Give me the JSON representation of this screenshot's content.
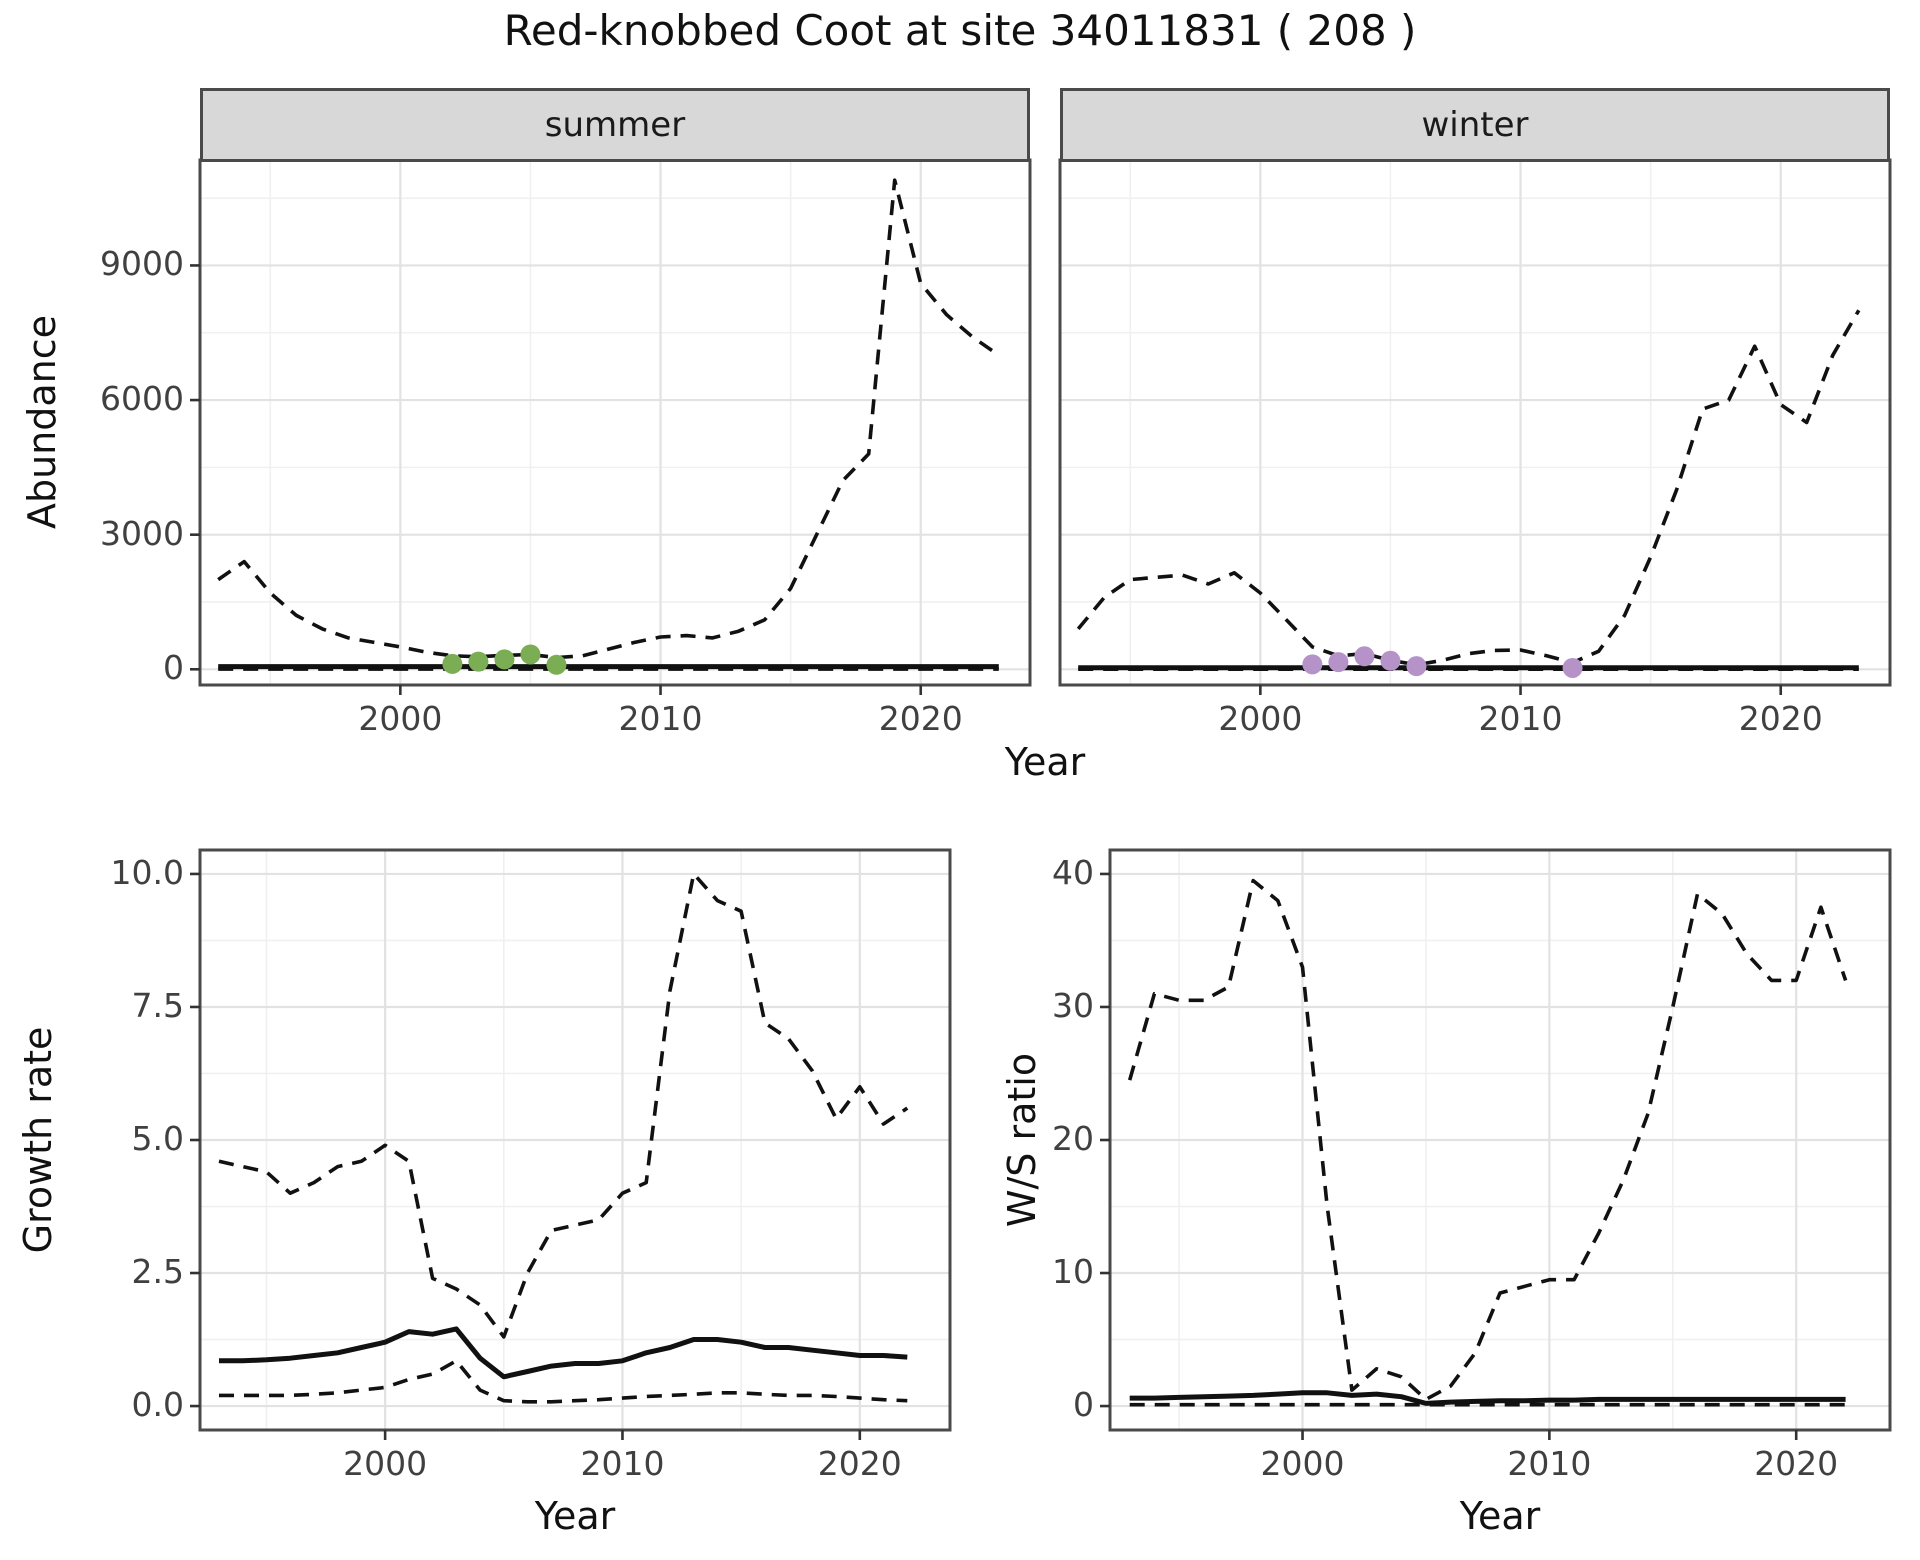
{
  "title": "Red-knobbed Coot at site 34011831 ( 208 )",
  "axes": {
    "abundance_label": "Abundance",
    "year_label_top": "Year",
    "growth_label": "Growth rate",
    "year_label_growth": "Year",
    "ws_label": "W/S ratio",
    "year_label_ws": "Year"
  },
  "colors": {
    "summer_points": "#7bae54",
    "winter_points": "#b593c8",
    "line": "#111111",
    "strip_bg": "#d8d8d8",
    "panel_border": "#4a4a4a"
  },
  "chart_data": [
    {
      "id": "abundance-summer",
      "type": "line",
      "facet": "summer",
      "xlabel": "Year",
      "ylabel": "Abundance",
      "xlim": [
        1992.3,
        2024.2
      ],
      "ylim": [
        -350,
        11350
      ],
      "xticks": [
        2000,
        2010,
        2020
      ],
      "xticklabels": [
        "2000",
        "2010",
        "2020"
      ],
      "yticks": [
        0,
        3000,
        6000,
        9000
      ],
      "yticklabels": [
        "0",
        "3000",
        "6000",
        "9000"
      ],
      "series": [
        {
          "name": "upper-ci-dashed",
          "style": "dashed",
          "x": [
            1993,
            1994,
            1995,
            1996,
            1997,
            1998,
            1999,
            2000,
            2001,
            2002,
            2003,
            2004,
            2005,
            2006,
            2007,
            2008,
            2009,
            2010,
            2011,
            2012,
            2013,
            2014,
            2015,
            2016,
            2017,
            2018,
            2019,
            2020,
            2021,
            2022,
            2023
          ],
          "y": [
            2000,
            2400,
            1700,
            1200,
            900,
            700,
            600,
            500,
            380,
            300,
            280,
            310,
            330,
            260,
            300,
            450,
            600,
            720,
            750,
            700,
            850,
            1100,
            1800,
            3000,
            4200,
            4800,
            10900,
            8600,
            7900,
            7400,
            7000
          ]
        },
        {
          "name": "estimate-solid",
          "style": "solid",
          "x": [
            1993,
            1994,
            1995,
            1996,
            1997,
            1998,
            1999,
            2000,
            2001,
            2002,
            2003,
            2004,
            2005,
            2006,
            2007,
            2008,
            2009,
            2010,
            2011,
            2012,
            2013,
            2014,
            2015,
            2016,
            2017,
            2018,
            2019,
            2020,
            2021,
            2022,
            2023
          ],
          "y": [
            60,
            60,
            60,
            60,
            60,
            60,
            60,
            60,
            60,
            60,
            60,
            60,
            60,
            60,
            60,
            60,
            60,
            60,
            60,
            60,
            60,
            60,
            60,
            60,
            60,
            60,
            60,
            60,
            60,
            60,
            60
          ]
        },
        {
          "name": "lower-ci-dashed",
          "style": "dashed",
          "x": [
            1993,
            1994,
            1995,
            1996,
            1997,
            1998,
            1999,
            2000,
            2001,
            2002,
            2003,
            2004,
            2005,
            2006,
            2007,
            2008,
            2009,
            2010,
            2011,
            2012,
            2013,
            2014,
            2015,
            2016,
            2017,
            2018,
            2019,
            2020,
            2021,
            2022,
            2023
          ],
          "y": [
            5,
            5,
            5,
            5,
            5,
            5,
            5,
            5,
            5,
            5,
            5,
            5,
            5,
            5,
            5,
            5,
            5,
            5,
            5,
            5,
            5,
            5,
            5,
            5,
            5,
            5,
            5,
            5,
            5,
            5,
            5
          ]
        }
      ],
      "points": {
        "name": "summer-observed-counts",
        "color": "#7bae54",
        "x": [
          2002,
          2003,
          2004,
          2005,
          2006
        ],
        "y": [
          120,
          170,
          220,
          330,
          100
        ]
      }
    },
    {
      "id": "abundance-winter",
      "type": "line",
      "facet": "winter",
      "xlabel": "Year",
      "ylabel": "",
      "xlim": [
        1992.3,
        2024.2
      ],
      "ylim": [
        -350,
        11350
      ],
      "xticks": [
        2000,
        2010,
        2020
      ],
      "xticklabels": [
        "2000",
        "2010",
        "2020"
      ],
      "yticks": [
        0,
        3000,
        6000,
        9000
      ],
      "yticklabels": [],
      "series": [
        {
          "name": "upper-ci-dashed",
          "style": "dashed",
          "x": [
            1993,
            1994,
            1995,
            1996,
            1997,
            1998,
            1999,
            2000,
            2001,
            2002,
            2003,
            2004,
            2005,
            2006,
            2007,
            2008,
            2009,
            2010,
            2011,
            2012,
            2013,
            2014,
            2015,
            2016,
            2017,
            2018,
            2019,
            2020,
            2021,
            2022,
            2023
          ],
          "y": [
            900,
            1600,
            2000,
            2050,
            2100,
            1900,
            2150,
            1700,
            1100,
            500,
            300,
            350,
            200,
            100,
            200,
            350,
            420,
            430,
            300,
            150,
            400,
            1200,
            2500,
            4000,
            5800,
            6000,
            7200,
            5900,
            5500,
            7000,
            8000
          ]
        },
        {
          "name": "estimate-solid",
          "style": "solid",
          "x": [
            1993,
            1994,
            1995,
            1996,
            1997,
            1998,
            1999,
            2000,
            2001,
            2002,
            2003,
            2004,
            2005,
            2006,
            2007,
            2008,
            2009,
            2010,
            2011,
            2012,
            2013,
            2014,
            2015,
            2016,
            2017,
            2018,
            2019,
            2020,
            2021,
            2022,
            2023
          ],
          "y": [
            35,
            35,
            35,
            35,
            35,
            35,
            35,
            35,
            35,
            35,
            35,
            35,
            35,
            35,
            35,
            35,
            35,
            35,
            35,
            35,
            35,
            35,
            35,
            35,
            35,
            35,
            35,
            35,
            35,
            35,
            35
          ]
        },
        {
          "name": "lower-ci-dashed",
          "style": "dashed",
          "x": [
            1993,
            1994,
            1995,
            1996,
            1997,
            1998,
            1999,
            2000,
            2001,
            2002,
            2003,
            2004,
            2005,
            2006,
            2007,
            2008,
            2009,
            2010,
            2011,
            2012,
            2013,
            2014,
            2015,
            2016,
            2017,
            2018,
            2019,
            2020,
            2021,
            2022,
            2023
          ],
          "y": [
            3,
            3,
            3,
            3,
            3,
            3,
            3,
            3,
            3,
            3,
            3,
            3,
            3,
            3,
            3,
            3,
            3,
            3,
            3,
            3,
            3,
            3,
            3,
            3,
            3,
            3,
            3,
            3,
            3,
            3,
            3
          ]
        }
      ],
      "points": {
        "name": "winter-observed-counts",
        "color": "#b593c8",
        "x": [
          2002,
          2003,
          2004,
          2005,
          2006,
          2012
        ],
        "y": [
          110,
          160,
          290,
          190,
          70,
          30
        ]
      }
    },
    {
      "id": "growth-rate",
      "type": "line",
      "facet": "",
      "xlabel": "Year",
      "ylabel": "Growth rate",
      "xlim": [
        1992.2,
        2023.8
      ],
      "ylim": [
        -0.45,
        10.45
      ],
      "xticks": [
        2000,
        2010,
        2020
      ],
      "xticklabels": [
        "2000",
        "2010",
        "2020"
      ],
      "yticks": [
        0,
        2.5,
        5,
        7.5,
        10
      ],
      "yticklabels": [
        "0.0",
        "2.5",
        "5.0",
        "7.5",
        "10.0"
      ],
      "series": [
        {
          "name": "upper-ci-dashed",
          "style": "dashed",
          "x": [
            1993,
            1994,
            1995,
            1996,
            1997,
            1998,
            1999,
            2000,
            2001,
            2002,
            2003,
            2004,
            2005,
            2006,
            2007,
            2008,
            2009,
            2010,
            2011,
            2012,
            2013,
            2014,
            2015,
            2016,
            2017,
            2018,
            2019,
            2020,
            2021,
            2022
          ],
          "y": [
            4.6,
            4.5,
            4.4,
            4.0,
            4.2,
            4.5,
            4.6,
            4.9,
            4.6,
            2.4,
            2.2,
            1.9,
            1.3,
            2.5,
            3.3,
            3.4,
            3.5,
            4.0,
            4.2,
            7.8,
            10.0,
            9.5,
            9.3,
            7.2,
            6.9,
            6.3,
            5.4,
            6.0,
            5.3,
            5.6
          ]
        },
        {
          "name": "estimate-solid",
          "style": "solid",
          "x": [
            1993,
            1994,
            1995,
            1996,
            1997,
            1998,
            1999,
            2000,
            2001,
            2002,
            2003,
            2004,
            2005,
            2006,
            2007,
            2008,
            2009,
            2010,
            2011,
            2012,
            2013,
            2014,
            2015,
            2016,
            2017,
            2018,
            2019,
            2020,
            2021,
            2022
          ],
          "y": [
            0.85,
            0.85,
            0.87,
            0.9,
            0.95,
            1.0,
            1.1,
            1.2,
            1.4,
            1.35,
            1.45,
            0.9,
            0.55,
            0.65,
            0.75,
            0.8,
            0.8,
            0.85,
            1.0,
            1.1,
            1.25,
            1.25,
            1.2,
            1.1,
            1.1,
            1.05,
            1.0,
            0.95,
            0.95,
            0.92
          ]
        },
        {
          "name": "lower-ci-dashed",
          "style": "dashed",
          "x": [
            1993,
            1994,
            1995,
            1996,
            1997,
            1998,
            1999,
            2000,
            2001,
            2002,
            2003,
            2004,
            2005,
            2006,
            2007,
            2008,
            2009,
            2010,
            2011,
            2012,
            2013,
            2014,
            2015,
            2016,
            2017,
            2018,
            2019,
            2020,
            2021,
            2022
          ],
          "y": [
            0.2,
            0.2,
            0.2,
            0.2,
            0.22,
            0.25,
            0.3,
            0.35,
            0.5,
            0.6,
            0.85,
            0.3,
            0.1,
            0.08,
            0.08,
            0.1,
            0.12,
            0.15,
            0.18,
            0.2,
            0.22,
            0.25,
            0.25,
            0.22,
            0.2,
            0.2,
            0.18,
            0.15,
            0.12,
            0.1
          ]
        }
      ]
    },
    {
      "id": "ws-ratio",
      "type": "line",
      "facet": "",
      "xlabel": "Year",
      "ylabel": "W/S ratio",
      "xlim": [
        1992.2,
        2023.8
      ],
      "ylim": [
        -1.8,
        41.8
      ],
      "xticks": [
        2000,
        2010,
        2020
      ],
      "xticklabels": [
        "2000",
        "2010",
        "2020"
      ],
      "yticks": [
        0,
        10,
        20,
        30,
        40
      ],
      "yticklabels": [
        "0",
        "10",
        "20",
        "30",
        "40"
      ],
      "series": [
        {
          "name": "upper-ci-dashed",
          "style": "dashed",
          "x": [
            1993,
            1994,
            1995,
            1996,
            1997,
            1998,
            1999,
            2000,
            2001,
            2002,
            2003,
            2004,
            2005,
            2006,
            2007,
            2008,
            2009,
            2010,
            2011,
            2012,
            2013,
            2014,
            2015,
            2016,
            2017,
            2018,
            2019,
            2020,
            2021,
            2022
          ],
          "y": [
            24.5,
            31,
            30.5,
            30.5,
            31.5,
            39.5,
            38,
            33,
            15,
            1.2,
            2.8,
            2.2,
            0.5,
            1.5,
            4,
            8.5,
            9,
            9.5,
            9.5,
            13,
            17,
            22,
            30,
            38.5,
            37,
            34,
            32,
            32,
            37.5,
            32
          ]
        },
        {
          "name": "estimate-solid",
          "style": "solid",
          "x": [
            1993,
            1994,
            1995,
            1996,
            1997,
            1998,
            1999,
            2000,
            2001,
            2002,
            2003,
            2004,
            2005,
            2006,
            2007,
            2008,
            2009,
            2010,
            2011,
            2012,
            2013,
            2014,
            2015,
            2016,
            2017,
            2018,
            2019,
            2020,
            2021,
            2022
          ],
          "y": [
            0.6,
            0.6,
            0.65,
            0.7,
            0.75,
            0.8,
            0.9,
            1.0,
            1.0,
            0.8,
            0.9,
            0.7,
            0.2,
            0.3,
            0.35,
            0.4,
            0.4,
            0.45,
            0.45,
            0.5,
            0.5,
            0.5,
            0.5,
            0.5,
            0.5,
            0.5,
            0.5,
            0.5,
            0.5,
            0.5
          ]
        },
        {
          "name": "lower-ci-dashed",
          "style": "dashed",
          "x": [
            1993,
            1994,
            1995,
            1996,
            1997,
            1998,
            1999,
            2000,
            2001,
            2002,
            2003,
            2004,
            2005,
            2006,
            2007,
            2008,
            2009,
            2010,
            2011,
            2012,
            2013,
            2014,
            2015,
            2016,
            2017,
            2018,
            2019,
            2020,
            2021,
            2022
          ],
          "y": [
            0.1,
            0.1,
            0.1,
            0.1,
            0.1,
            0.1,
            0.1,
            0.1,
            0.1,
            0.1,
            0.1,
            0.1,
            0.1,
            0.1,
            0.1,
            0.1,
            0.1,
            0.1,
            0.1,
            0.1,
            0.1,
            0.1,
            0.1,
            0.1,
            0.1,
            0.1,
            0.1,
            0.1,
            0.1,
            0.1
          ]
        }
      ]
    }
  ]
}
